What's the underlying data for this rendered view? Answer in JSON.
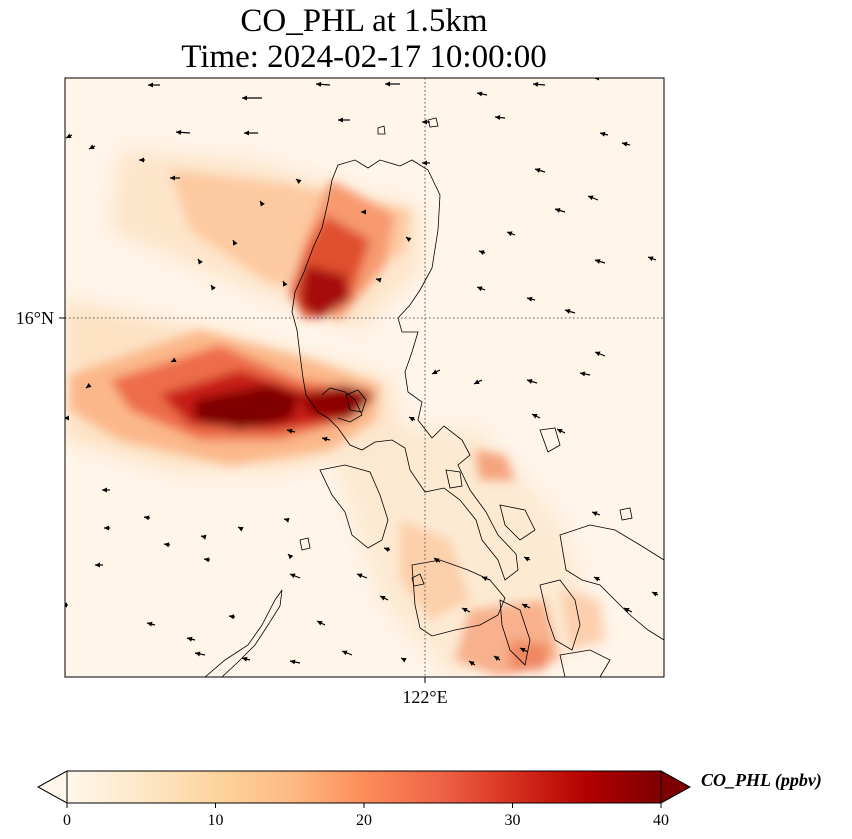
{
  "title": {
    "line1": "CO_PHL at 1.5km",
    "line2": "Time: 2024-02-17 10:00:00"
  },
  "axes": {
    "lat_label": "16°N",
    "lon_label": "122°E",
    "grid_style": "dotted"
  },
  "colorbar": {
    "label": "CO_PHL (ppbv)",
    "min": 0,
    "max": 40,
    "extend": "both",
    "ticks": [
      "0",
      "10",
      "20",
      "30",
      "40"
    ],
    "colormap": "OrRd",
    "stops": [
      "#fff7ec",
      "#fee8c8",
      "#fdd49e",
      "#fdbb84",
      "#fc8d59",
      "#ef6548",
      "#d7301f",
      "#b30000",
      "#7f0000"
    ]
  },
  "map": {
    "background_color": "#fff5e9",
    "coastline_color": "#000000",
    "vector_color": "#000000"
  }
}
